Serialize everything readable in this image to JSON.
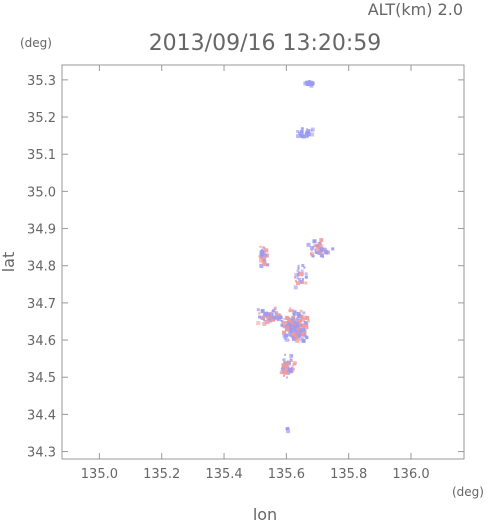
{
  "chart_data": {
    "type": "scatter",
    "title": "2013/09/16 13:20:59",
    "altitude_label": "ALT(km)  2.0",
    "xlabel": "lon",
    "ylabel": "lat",
    "x_unit": "(deg)",
    "y_unit": "(deg)",
    "xlim": [
      134.88,
      136.17
    ],
    "ylim": [
      34.28,
      35.34
    ],
    "x_ticks": [
      "135.0",
      "135.2",
      "135.4",
      "135.6",
      "135.8",
      "136.0"
    ],
    "y_ticks": [
      "34.3",
      "34.4",
      "34.5",
      "34.6",
      "34.7",
      "34.8",
      "34.9",
      "35.0",
      "35.1",
      "35.2",
      "35.3"
    ],
    "grid": false,
    "colors": {
      "negative": "#9a9af2",
      "positive": "#f29a9a",
      "frame": "#999999"
    },
    "clusters": [
      {
        "lon": 135.67,
        "lat": 35.295,
        "lon_spread": 0.02,
        "lat_spread": 0.008,
        "count": 28,
        "color": "negative"
      },
      {
        "lon": 135.655,
        "lat": 35.16,
        "lon_spread": 0.035,
        "lat_spread": 0.018,
        "count": 30,
        "color": "negative"
      },
      {
        "lon": 135.52,
        "lat": 34.83,
        "lon_spread": 0.02,
        "lat_spread": 0.04,
        "count": 30,
        "color": "mixed"
      },
      {
        "lon": 135.7,
        "lat": 34.85,
        "lon_spread": 0.05,
        "lat_spread": 0.03,
        "count": 45,
        "color": "mixed"
      },
      {
        "lon": 135.64,
        "lat": 34.78,
        "lon_spread": 0.03,
        "lat_spread": 0.04,
        "count": 25,
        "color": "mixed"
      },
      {
        "lon": 135.54,
        "lat": 34.67,
        "lon_spread": 0.05,
        "lat_spread": 0.03,
        "count": 60,
        "color": "mixed"
      },
      {
        "lon": 135.62,
        "lat": 34.64,
        "lon_spread": 0.06,
        "lat_spread": 0.06,
        "count": 180,
        "color": "mixed"
      },
      {
        "lon": 135.6,
        "lat": 34.53,
        "lon_spread": 0.035,
        "lat_spread": 0.04,
        "count": 60,
        "color": "mixed"
      },
      {
        "lon": 135.6,
        "lat": 34.365,
        "lon_spread": 0.01,
        "lat_spread": 0.006,
        "count": 4,
        "color": "negative"
      }
    ]
  }
}
